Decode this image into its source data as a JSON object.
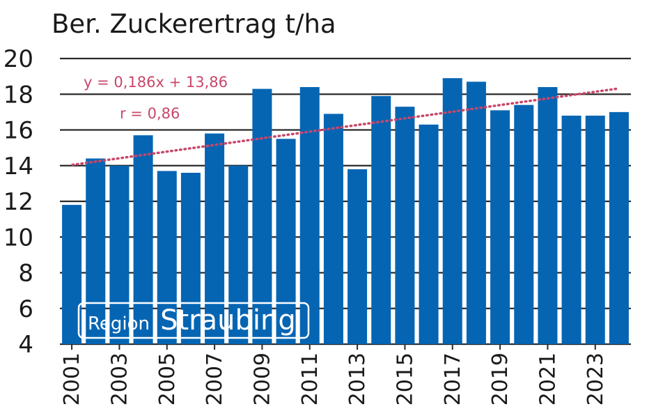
{
  "chart_data": {
    "type": "bar",
    "title": "Ber. Zuckerertrag t/ha",
    "xlabel": "",
    "ylabel": "",
    "ylim": [
      4,
      20
    ],
    "yticks": [
      20,
      18,
      16,
      14,
      12,
      10,
      8,
      6,
      4
    ],
    "grid": true,
    "categories": [
      "2001",
      "2002",
      "2003",
      "2004",
      "2005",
      "2006",
      "2007",
      "2008",
      "2009",
      "2010",
      "2011",
      "2012",
      "2013",
      "2014",
      "2015",
      "2016",
      "2017",
      "2018",
      "2019",
      "2020",
      "2021",
      "2022",
      "2023",
      "2024"
    ],
    "xtick_labels": [
      "2001",
      "2003",
      "2005",
      "2007",
      "2009",
      "2011",
      "2013",
      "2015",
      "2017",
      "2019",
      "2021",
      "2023"
    ],
    "values": [
      11.8,
      14.4,
      14.0,
      15.7,
      13.7,
      13.6,
      15.8,
      14.0,
      18.3,
      15.5,
      18.4,
      16.9,
      13.8,
      17.9,
      17.3,
      16.3,
      18.9,
      18.7,
      17.1,
      17.4,
      18.4,
      16.8,
      16.8,
      17.0
    ],
    "trendline": {
      "slope": 0.186,
      "intercept": 13.86,
      "equation_label": "y = 0,186x + 13,86",
      "r_label": "r = 0,86",
      "style": "dotted"
    },
    "badge": {
      "small": "Region",
      "big": "Straubing"
    },
    "colors": {
      "bar": "#0565b3",
      "trend": "#c8476a",
      "grid": "#2a2a2a",
      "badge_border": "#ffffff"
    }
  }
}
